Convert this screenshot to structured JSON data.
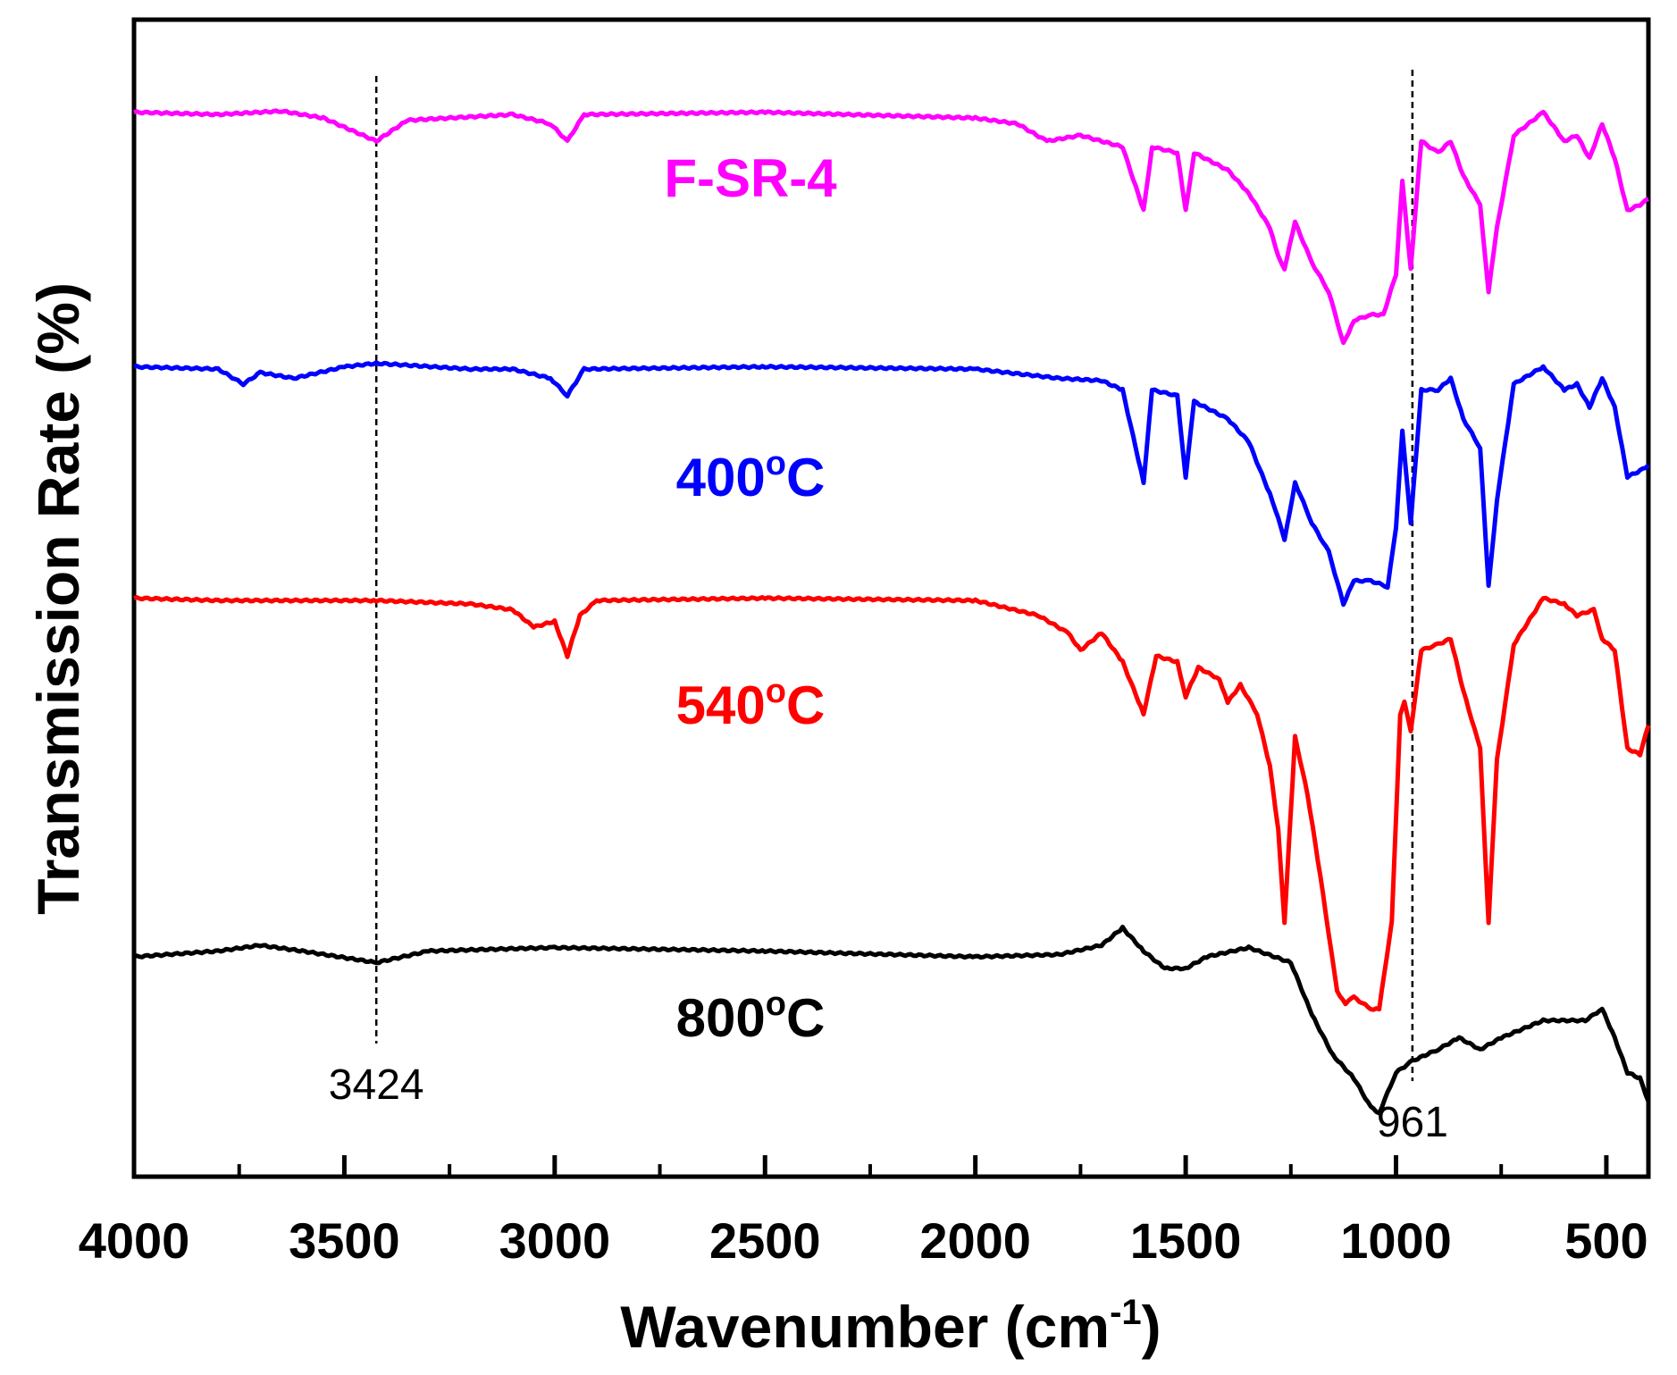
{
  "chart_data": {
    "type": "line",
    "title": "",
    "xlabel": "Wavenumber (cm",
    "xlabel_sup": "-1",
    "xlabel_end": ")",
    "ylabel": "Transmission Rate (%)",
    "xlim": [
      4000,
      400
    ],
    "ylim": [
      0,
      100
    ],
    "xticks": [
      4000,
      3500,
      3000,
      2500,
      2000,
      1500,
      1000,
      500
    ],
    "grid": false,
    "annotations": [
      {
        "label": "3424",
        "x": 3424
      },
      {
        "label": "961",
        "x": 961
      }
    ],
    "series": [
      {
        "name": "F-SR-4",
        "name_sup": "",
        "name_end": "",
        "color": "#ff00ff",
        "points": [
          [
            4000,
            92.0
          ],
          [
            3800,
            91.8
          ],
          [
            3650,
            92.1
          ],
          [
            3550,
            91.5
          ],
          [
            3424,
            89.5
          ],
          [
            3350,
            91.3
          ],
          [
            3100,
            91.8
          ],
          [
            3010,
            91.0
          ],
          [
            2970,
            89.5
          ],
          [
            2930,
            91.8
          ],
          [
            2500,
            92.0
          ],
          [
            2000,
            91.5
          ],
          [
            1900,
            91.0
          ],
          [
            1830,
            89.5
          ],
          [
            1750,
            90.0
          ],
          [
            1650,
            89.0
          ],
          [
            1600,
            83.5
          ],
          [
            1580,
            89.0
          ],
          [
            1520,
            88.5
          ],
          [
            1500,
            83.5
          ],
          [
            1480,
            88.5
          ],
          [
            1400,
            87.0
          ],
          [
            1350,
            85.0
          ],
          [
            1300,
            82.0
          ],
          [
            1280,
            79.5
          ],
          [
            1265,
            78.5
          ],
          [
            1240,
            82.5
          ],
          [
            1200,
            79.0
          ],
          [
            1160,
            76.5
          ],
          [
            1125,
            72.0
          ],
          [
            1100,
            74.0
          ],
          [
            1060,
            74.5
          ],
          [
            1030,
            74.5
          ],
          [
            1000,
            78.0
          ],
          [
            985,
            86.0
          ],
          [
            965,
            78.5
          ],
          [
            940,
            89.5
          ],
          [
            900,
            88.5
          ],
          [
            870,
            89.5
          ],
          [
            840,
            86.5
          ],
          [
            800,
            84.0
          ],
          [
            780,
            76.5
          ],
          [
            760,
            82.0
          ],
          [
            720,
            90.0
          ],
          [
            650,
            92.0
          ],
          [
            600,
            89.5
          ],
          [
            570,
            90.0
          ],
          [
            540,
            88.0
          ],
          [
            510,
            91.0
          ],
          [
            480,
            88.0
          ],
          [
            450,
            83.5
          ],
          [
            420,
            84.0
          ],
          [
            400,
            84.5
          ]
        ]
      },
      {
        "name": "400",
        "name_sup": "o",
        "name_end": "C",
        "color": "#0000ff",
        "points": [
          [
            4000,
            70.0
          ],
          [
            3800,
            69.8
          ],
          [
            3740,
            68.5
          ],
          [
            3700,
            69.5
          ],
          [
            3620,
            69.0
          ],
          [
            3500,
            70.0
          ],
          [
            3424,
            70.3
          ],
          [
            3200,
            69.8
          ],
          [
            3100,
            69.8
          ],
          [
            3010,
            69.0
          ],
          [
            2970,
            67.5
          ],
          [
            2930,
            69.8
          ],
          [
            2500,
            70.0
          ],
          [
            2000,
            69.8
          ],
          [
            1800,
            69.0
          ],
          [
            1700,
            68.8
          ],
          [
            1650,
            68.0
          ],
          [
            1600,
            60.0
          ],
          [
            1580,
            68.0
          ],
          [
            1520,
            67.5
          ],
          [
            1500,
            60.5
          ],
          [
            1480,
            67.0
          ],
          [
            1400,
            65.5
          ],
          [
            1350,
            63.5
          ],
          [
            1300,
            59.0
          ],
          [
            1280,
            57.0
          ],
          [
            1265,
            55.0
          ],
          [
            1240,
            60.0
          ],
          [
            1200,
            56.5
          ],
          [
            1160,
            54.0
          ],
          [
            1125,
            49.5
          ],
          [
            1100,
            51.5
          ],
          [
            1060,
            51.5
          ],
          [
            1020,
            51.0
          ],
          [
            1000,
            56.0
          ],
          [
            985,
            64.5
          ],
          [
            965,
            56.5
          ],
          [
            940,
            68.0
          ],
          [
            900,
            68.0
          ],
          [
            870,
            69.0
          ],
          [
            840,
            65.5
          ],
          [
            800,
            63.0
          ],
          [
            780,
            51.0
          ],
          [
            760,
            58.5
          ],
          [
            720,
            68.5
          ],
          [
            650,
            70.0
          ],
          [
            600,
            68.0
          ],
          [
            570,
            68.5
          ],
          [
            540,
            66.5
          ],
          [
            510,
            69.0
          ],
          [
            480,
            66.5
          ],
          [
            450,
            60.5
          ],
          [
            420,
            61.0
          ],
          [
            400,
            61.5
          ]
        ]
      },
      {
        "name": "540",
        "name_sup": "o",
        "name_end": "C",
        "color": "#ff0000",
        "points": [
          [
            4000,
            50.0
          ],
          [
            3800,
            49.8
          ],
          [
            3424,
            49.8
          ],
          [
            3200,
            49.5
          ],
          [
            3100,
            49.0
          ],
          [
            3050,
            47.5
          ],
          [
            3000,
            48.0
          ],
          [
            2970,
            45.0
          ],
          [
            2940,
            48.5
          ],
          [
            2900,
            49.8
          ],
          [
            2500,
            50.0
          ],
          [
            2000,
            49.8
          ],
          [
            1850,
            48.5
          ],
          [
            1780,
            47.0
          ],
          [
            1750,
            45.5
          ],
          [
            1700,
            47.0
          ],
          [
            1650,
            44.5
          ],
          [
            1600,
            40.0
          ],
          [
            1570,
            45.0
          ],
          [
            1520,
            44.5
          ],
          [
            1500,
            41.5
          ],
          [
            1470,
            44.0
          ],
          [
            1420,
            43.0
          ],
          [
            1400,
            41.0
          ],
          [
            1370,
            42.5
          ],
          [
            1330,
            40.0
          ],
          [
            1300,
            35.5
          ],
          [
            1280,
            30.0
          ],
          [
            1265,
            22.0
          ],
          [
            1240,
            38.0
          ],
          [
            1210,
            33.0
          ],
          [
            1180,
            26.0
          ],
          [
            1140,
            16.0
          ],
          [
            1120,
            15.0
          ],
          [
            1100,
            15.5
          ],
          [
            1060,
            14.5
          ],
          [
            1040,
            14.5
          ],
          [
            1010,
            22.0
          ],
          [
            990,
            40.0
          ],
          [
            980,
            41.0
          ],
          [
            965,
            38.5
          ],
          [
            940,
            45.5
          ],
          [
            900,
            46.0
          ],
          [
            870,
            46.5
          ],
          [
            840,
            42.0
          ],
          [
            800,
            37.0
          ],
          [
            780,
            22.0
          ],
          [
            760,
            36.0
          ],
          [
            720,
            46.0
          ],
          [
            650,
            50.0
          ],
          [
            600,
            49.5
          ],
          [
            570,
            48.5
          ],
          [
            530,
            49.0
          ],
          [
            510,
            46.5
          ],
          [
            480,
            45.5
          ],
          [
            450,
            37.0
          ],
          [
            420,
            36.5
          ],
          [
            400,
            39.0
          ]
        ]
      },
      {
        "name": "800",
        "name_sup": "o",
        "name_end": "C",
        "color": "#000000",
        "points": [
          [
            4000,
            19.0
          ],
          [
            3800,
            19.5
          ],
          [
            3700,
            20.0
          ],
          [
            3600,
            19.5
          ],
          [
            3424,
            18.5
          ],
          [
            3300,
            19.5
          ],
          [
            3000,
            19.8
          ],
          [
            2500,
            19.5
          ],
          [
            2000,
            19.0
          ],
          [
            1800,
            19.2
          ],
          [
            1700,
            20.0
          ],
          [
            1650,
            21.5
          ],
          [
            1600,
            19.5
          ],
          [
            1550,
            18.0
          ],
          [
            1500,
            18.0
          ],
          [
            1450,
            19.0
          ],
          [
            1350,
            19.8
          ],
          [
            1250,
            18.5
          ],
          [
            1200,
            14.0
          ],
          [
            1150,
            10.5
          ],
          [
            1100,
            8.5
          ],
          [
            1060,
            6.0
          ],
          [
            1040,
            5.5
          ],
          [
            1000,
            9.0
          ],
          [
            961,
            10.0
          ],
          [
            900,
            11.0
          ],
          [
            850,
            12.0
          ],
          [
            800,
            11.0
          ],
          [
            750,
            12.0
          ],
          [
            650,
            13.5
          ],
          [
            550,
            13.5
          ],
          [
            510,
            14.5
          ],
          [
            480,
            12.0
          ],
          [
            450,
            9.0
          ],
          [
            420,
            8.5
          ],
          [
            400,
            6.5
          ]
        ]
      }
    ]
  }
}
